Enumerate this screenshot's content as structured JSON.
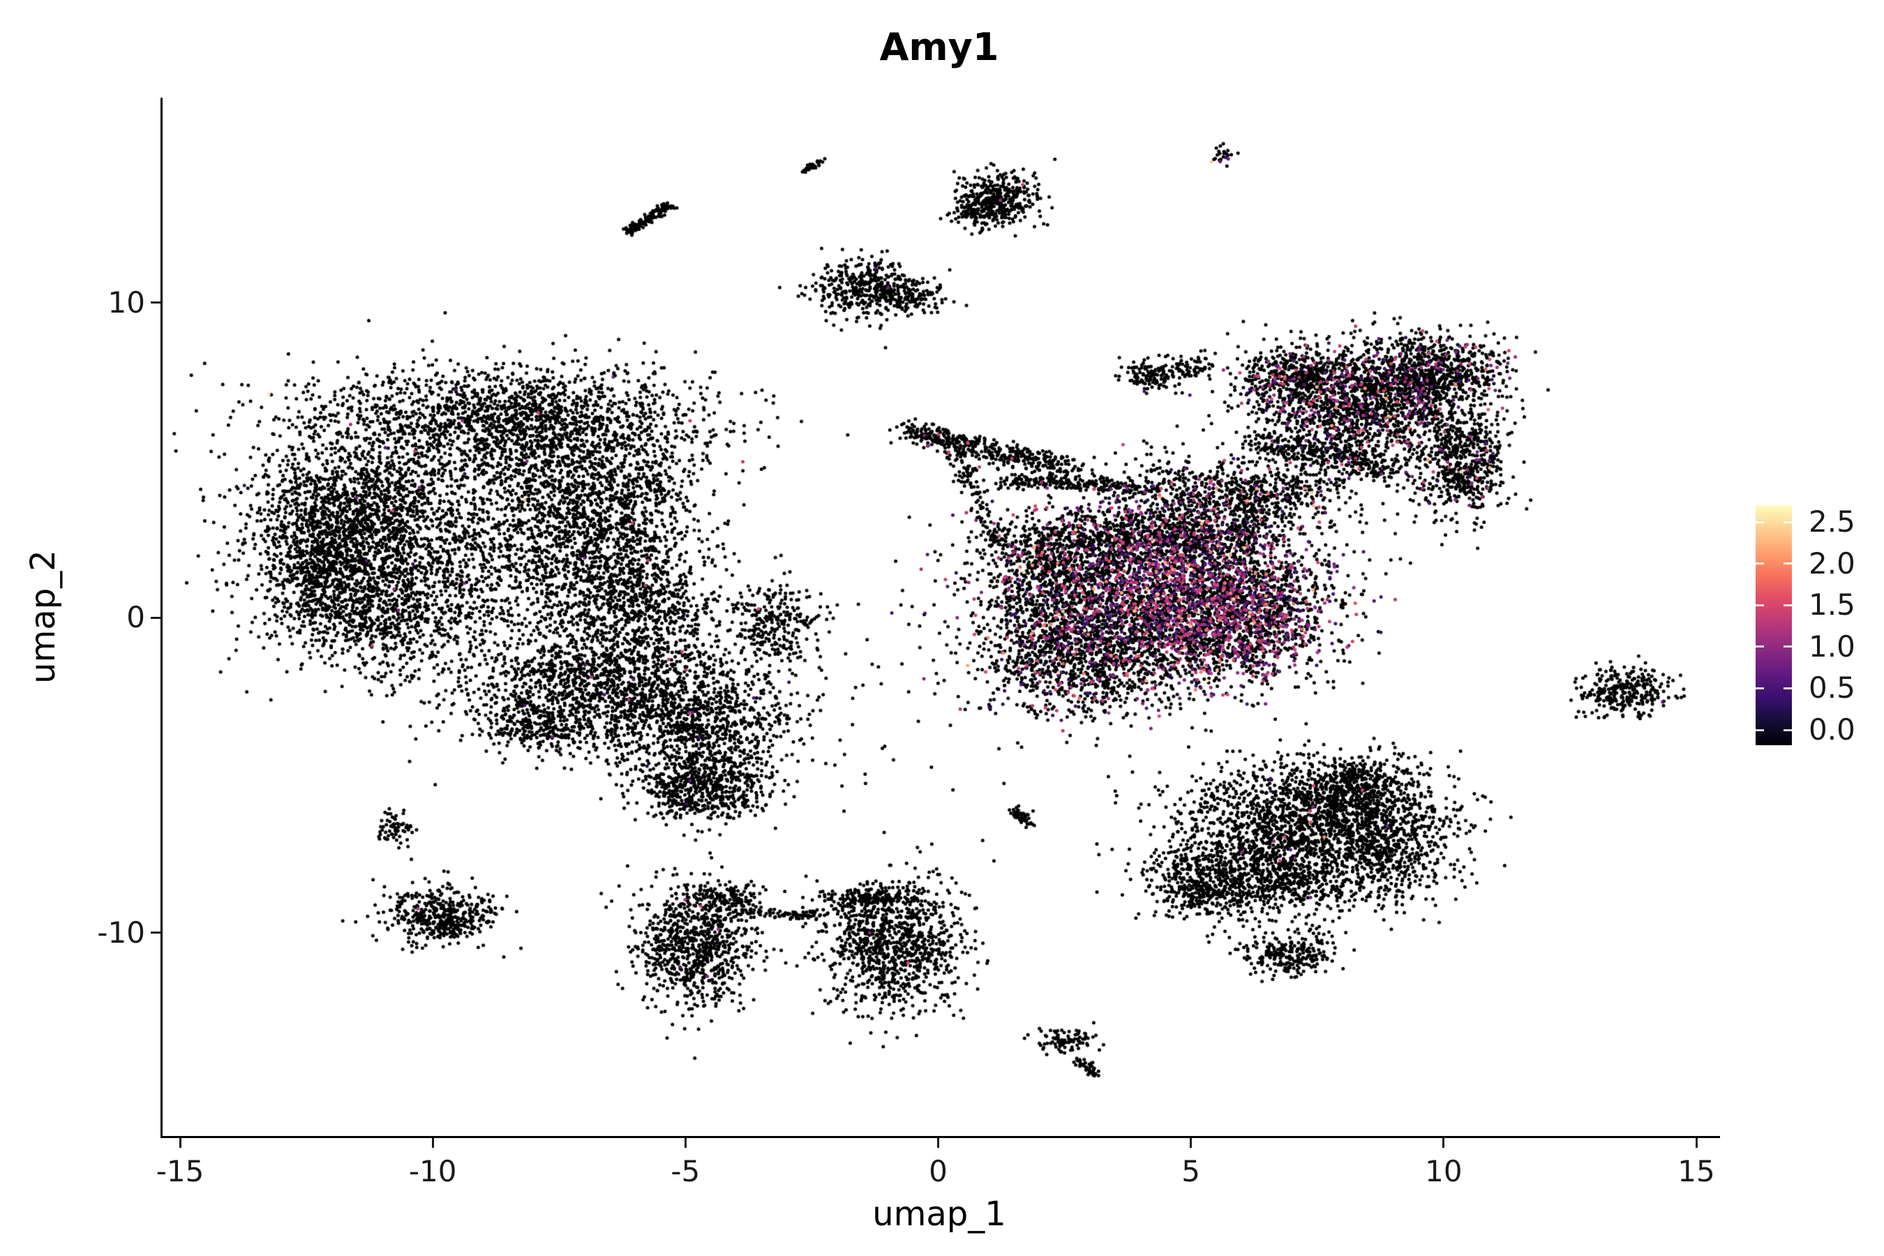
{
  "chart_data": {
    "type": "scatter",
    "title": "Amy1",
    "xlabel": "umap_1",
    "ylabel": "umap_2",
    "xlim": [
      -15.5,
      15.5
    ],
    "ylim": [
      -16.5,
      16.5
    ],
    "grid": false,
    "background": "#ffffff",
    "point_color_default": "#000000",
    "x_ticks": [
      [
        -15,
        "-15"
      ],
      [
        -10,
        "-10"
      ],
      [
        -5,
        "-5"
      ],
      [
        0,
        "0"
      ],
      [
        5,
        "5"
      ],
      [
        10,
        "10"
      ],
      [
        15,
        "15"
      ]
    ],
    "y_ticks": [
      [
        -10,
        "-10"
      ],
      [
        0,
        "0"
      ],
      [
        10,
        "10"
      ]
    ],
    "legend": {
      "position": "right",
      "ticks": [
        [
          2.5,
          "2.5"
        ],
        [
          2.0,
          "2.0"
        ],
        [
          1.5,
          "1.5"
        ],
        [
          1.0,
          "1.0"
        ],
        [
          0.5,
          "0.5"
        ],
        [
          0.0,
          "0.0"
        ]
      ],
      "gradient": [
        "#000004",
        "#140e36",
        "#3b0f70",
        "#641a80",
        "#8c2981",
        "#b73779",
        "#de4968",
        "#f76f5c",
        "#fe9f6d",
        "#fece91",
        "#fcfdbf"
      ]
    },
    "expression_palette_stops": [
      [
        0,
        "#000004"
      ],
      [
        0.5,
        "#3b0f70"
      ],
      [
        1,
        "#8c2981"
      ],
      [
        1.5,
        "#de4968"
      ],
      [
        2,
        "#fe9f6d"
      ],
      [
        2.5,
        "#fcfdbf"
      ]
    ],
    "clusters": [
      [
        -11.6,
        3.2,
        1.0,
        1.6,
        1500,
        0.004
      ],
      [
        -8.6,
        6.4,
        1.9,
        0.8,
        1500,
        0.006
      ],
      [
        -9.6,
        1.6,
        2.0,
        1.7,
        1500,
        0.004
      ],
      [
        -6.6,
        2.3,
        0.9,
        1.7,
        1100,
        0.004
      ],
      [
        -7.6,
        4.6,
        1.4,
        1.1,
        900,
        0.004
      ],
      [
        -11.2,
        0.3,
        0.9,
        1.1,
        500,
        0
      ],
      [
        -12.4,
        2.0,
        0.5,
        1.2,
        400,
        0
      ],
      [
        -5.9,
        0.3,
        0.7,
        0.9,
        400,
        0.005
      ],
      [
        -6.6,
        -2.1,
        1.5,
        1.0,
        1400,
        0.006
      ],
      [
        -4.9,
        -3.4,
        1.0,
        0.8,
        800,
        0.004
      ],
      [
        -4.7,
        -5.4,
        0.65,
        0.55,
        650,
        0.004
      ],
      [
        -3.3,
        -0.2,
        0.5,
        0.7,
        280,
        0.01
      ],
      [
        -7.9,
        -3.4,
        0.5,
        0.5,
        250,
        0
      ],
      [
        -10.8,
        -6.7,
        0.18,
        0.28,
        70,
        0
      ],
      [
        -9.9,
        -9.5,
        0.55,
        0.45,
        450,
        0.002
      ],
      [
        -4.85,
        -10.4,
        0.55,
        0.95,
        850,
        0.004
      ],
      [
        -4.2,
        -8.9,
        0.3,
        0.25,
        120,
        0
      ],
      [
        -0.9,
        -10.4,
        0.7,
        1.0,
        1000,
        0.003
      ],
      [
        -1.3,
        -8.9,
        0.5,
        0.2,
        180,
        0
      ],
      [
        2.5,
        -13.4,
        0.3,
        0.2,
        90,
        0
      ],
      [
        7.4,
        -6.2,
        1.3,
        0.85,
        1400,
        0.004
      ],
      [
        6.4,
        -8.1,
        1.1,
        0.75,
        1000,
        0.004
      ],
      [
        8.8,
        -7.4,
        0.7,
        0.8,
        550,
        0.003
      ],
      [
        5.2,
        -8.6,
        0.45,
        0.5,
        280,
        0
      ],
      [
        7.0,
        -10.7,
        0.5,
        0.33,
        240,
        0
      ],
      [
        8.2,
        -5.3,
        0.6,
        0.4,
        300,
        0
      ],
      [
        13.5,
        -2.3,
        0.45,
        0.38,
        300,
        0.003
      ],
      [
        4.3,
        0.9,
        1.6,
        1.4,
        3200,
        0.28
      ],
      [
        5.7,
        -0.1,
        1.0,
        1.0,
        1300,
        0.33
      ],
      [
        3.0,
        -1.4,
        1.0,
        0.85,
        900,
        0.12
      ],
      [
        1.9,
        0.2,
        0.55,
        1.1,
        450,
        0.04
      ],
      [
        2.4,
        2.3,
        0.8,
        0.6,
        450,
        0.1
      ],
      [
        4.9,
        2.6,
        0.9,
        0.5,
        500,
        0.15
      ],
      [
        5.6,
        3.8,
        1.2,
        0.65,
        650,
        0.05
      ],
      [
        8.3,
        6.8,
        1.05,
        0.95,
        1700,
        0.12
      ],
      [
        9.7,
        7.8,
        0.75,
        0.55,
        700,
        0.08
      ],
      [
        10.3,
        4.9,
        0.45,
        0.85,
        600,
        0.05
      ],
      [
        6.9,
        7.6,
        0.5,
        0.45,
        350,
        0.08
      ],
      [
        4.2,
        7.7,
        0.3,
        0.25,
        130,
        0
      ],
      [
        5.0,
        7.9,
        0.2,
        0.2,
        60,
        0
      ],
      [
        1.2,
        13.3,
        0.42,
        0.4,
        330,
        0.003
      ],
      [
        0.75,
        12.85,
        0.25,
        0.2,
        110,
        0
      ],
      [
        -1.45,
        10.45,
        0.55,
        0.45,
        430,
        0.004
      ],
      [
        -0.55,
        10.15,
        0.3,
        0.2,
        100,
        0
      ],
      [
        5.6,
        14.65,
        0.12,
        0.12,
        25,
        0.1
      ],
      [
        0.3,
        -3.5,
        1.3,
        1.5,
        40,
        0
      ]
    ],
    "streaks": [
      [
        -4.1,
        -9.35,
        -2.3,
        -9.45,
        0.08,
        90,
        0
      ],
      [
        1.45,
        -6.1,
        1.75,
        -6.55,
        0.06,
        55,
        0
      ],
      [
        2.7,
        -14.0,
        3.05,
        -14.45,
        0.06,
        45,
        0
      ],
      [
        -0.6,
        5.9,
        2.6,
        4.7,
        0.18,
        450,
        0.02
      ],
      [
        1.2,
        4.35,
        4.2,
        4.1,
        0.12,
        220,
        0.02
      ],
      [
        6.3,
        5.6,
        9.0,
        4.6,
        0.25,
        320,
        0.03
      ],
      [
        -6.2,
        12.2,
        -5.35,
        13.1,
        0.07,
        130,
        0
      ],
      [
        -2.7,
        14.2,
        -2.35,
        14.5,
        0.05,
        40,
        0
      ],
      [
        1.3,
        2.2,
        0.2,
        5.4,
        0.15,
        120,
        0.01
      ],
      [
        5.8,
        3.3,
        7.6,
        4.4,
        0.3,
        150,
        0.04
      ]
    ]
  }
}
